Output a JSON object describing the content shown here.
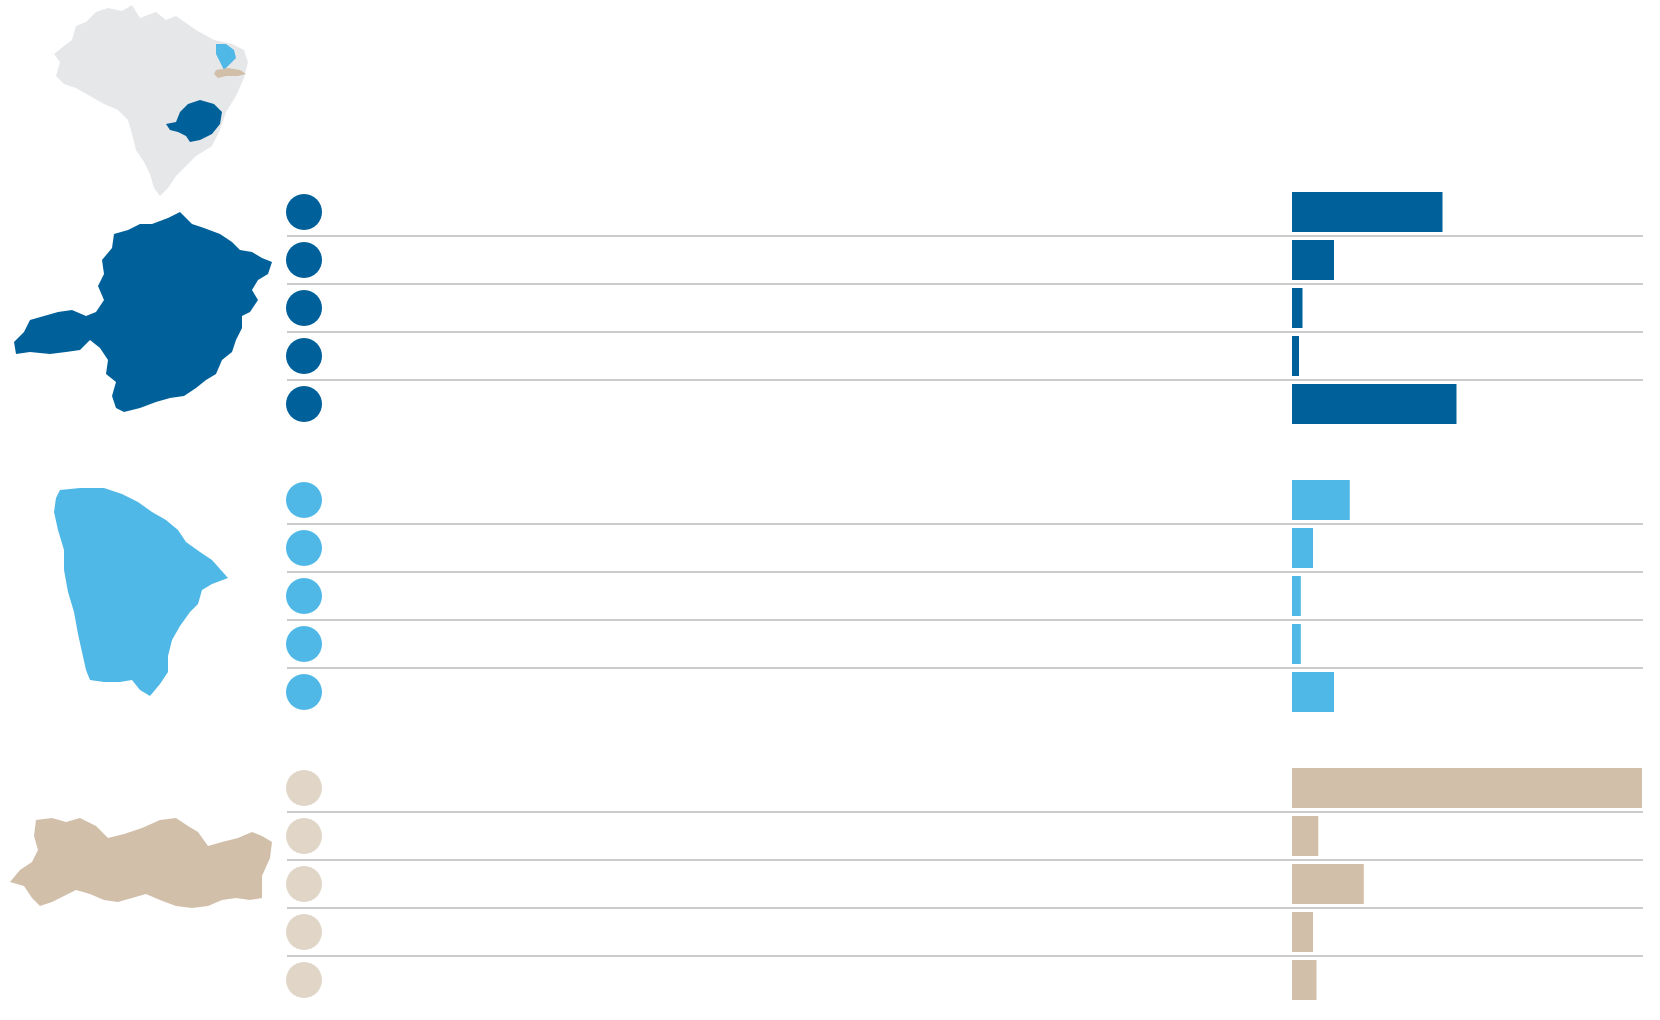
{
  "colors": {
    "region_1": "#00619a",
    "region_2": "#4fb8e6",
    "region_3": "#d1bfaa",
    "region_3_dot": "#e1d5c8",
    "country_fill": "#e6e7e8",
    "rule": "#9a9a9a"
  },
  "icons": {
    "locator": "brazil-locator-map-icon",
    "region_1": "minas-gerais-map-icon",
    "region_2": "ceara-map-icon",
    "region_3": "pernambuco-map-icon"
  },
  "chart_data": {
    "type": "bar",
    "orientation": "horizontal",
    "xlim": [
      0,
      100
    ],
    "grid": false,
    "groups": [
      {
        "color_key": "region_1",
        "dot_key": "region_1",
        "values": [
          43,
          12,
          3,
          2,
          47
        ]
      },
      {
        "color_key": "region_2",
        "dot_key": "region_2",
        "values": [
          16.5,
          6,
          2.5,
          2.5,
          12
        ]
      },
      {
        "color_key": "region_3",
        "dot_key": "region_3_dot",
        "values": [
          100,
          7.5,
          20.5,
          6,
          7
        ]
      }
    ]
  }
}
